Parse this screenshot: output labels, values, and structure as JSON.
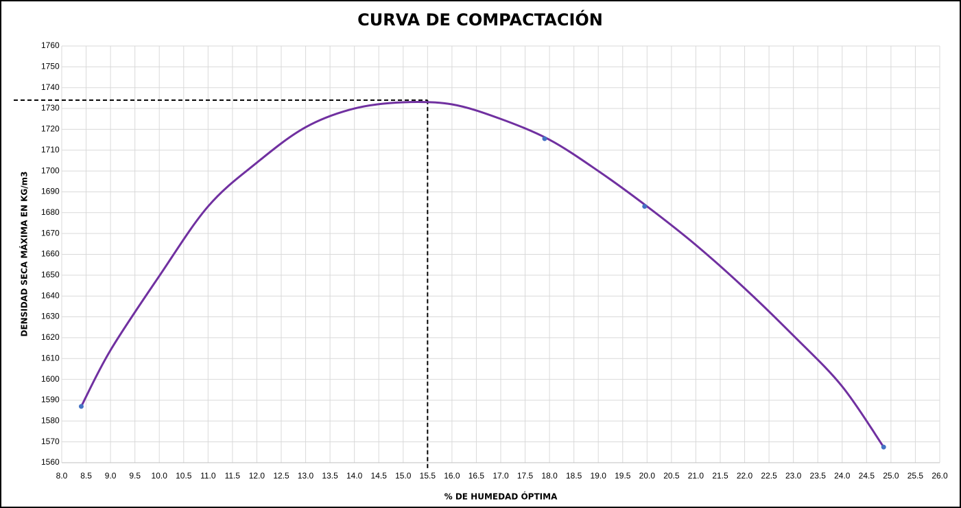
{
  "chart_data": {
    "type": "scatter",
    "title": "CURVA DE COMPACTACIÓN",
    "xlabel": "% DE HUMEDAD ÓPTIMA",
    "ylabel": "DENSIDAD SECA MÁXIMA EN KG/m3",
    "xlim": [
      8,
      26
    ],
    "xticks": [
      {
        "value": 8,
        "label": "8.0"
      },
      8.5,
      {
        "value": 9,
        "label": "9.0"
      },
      9.5,
      {
        "value": 10,
        "label": "10.0"
      },
      10.5,
      {
        "value": 11,
        "label": "11.0"
      },
      11.5,
      {
        "value": 12,
        "label": "12.0"
      },
      12.5,
      {
        "value": 13,
        "label": "13.0"
      },
      13.5,
      {
        "value": 14,
        "label": "14.0"
      },
      14.5,
      {
        "value": 15,
        "label": "15.0"
      },
      15.5,
      {
        "value": 16,
        "label": "16.0"
      },
      16.5,
      {
        "value": 17,
        "label": "17.0"
      },
      17.5,
      {
        "value": 18,
        "label": "18.0"
      },
      18.5,
      {
        "value": 19,
        "label": "19.0"
      },
      19.5,
      {
        "value": 20,
        "label": "20.0"
      },
      20.5,
      {
        "value": 21,
        "label": "21.0"
      },
      21.5,
      {
        "value": 22,
        "label": "22.0"
      },
      22.5,
      {
        "value": 23,
        "label": "23.0"
      },
      23.5,
      {
        "value": 24,
        "label": "24.0"
      },
      24.5,
      {
        "value": 25,
        "label": "25.0"
      },
      25.5,
      {
        "value": 26,
        "label": "26.0"
      }
    ],
    "ylim": [
      1560,
      1760
    ],
    "yticks": [
      1560,
      1570,
      1580,
      1590,
      1600,
      1610,
      1620,
      1630,
      1640,
      1650,
      1660,
      1670,
      1680,
      1690,
      1700,
      1710,
      1720,
      1730,
      1740,
      1750,
      1760
    ],
    "grid": true,
    "series": [
      {
        "color": "#4472c4",
        "x": [
          8.4,
          17.9,
          19.95,
          24.85
        ],
        "values": [
          1587,
          1715.5,
          1683,
          1567.5
        ]
      },
      {
        "color": "#7030a0",
        "x": [
          8.4,
          9,
          10,
          11,
          12,
          13,
          14,
          15,
          16,
          17,
          18,
          19,
          20,
          21,
          22,
          23,
          24,
          24.85
        ],
        "values": [
          1587,
          1614,
          1649.6,
          1683,
          1704,
          1721,
          1730,
          1733,
          1732,
          1725,
          1715,
          1700,
          1683,
          1664.5,
          1643.7,
          1621,
          1596.6,
          1567.5
        ]
      }
    ],
    "optimum": {
      "x": 15.5,
      "y": 1734
    }
  }
}
